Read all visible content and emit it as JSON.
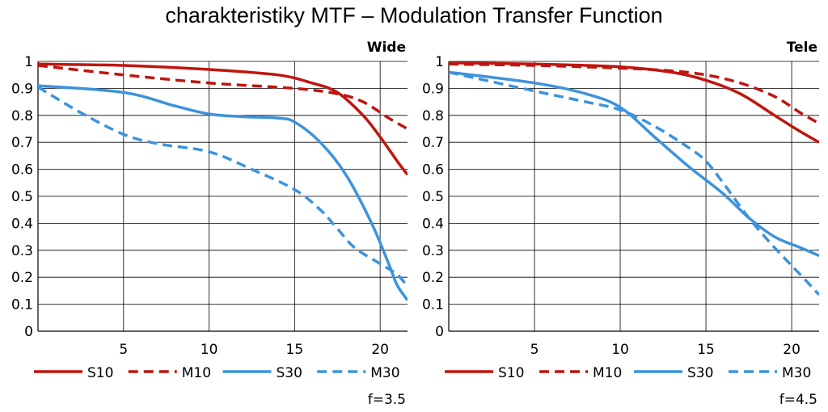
{
  "title": "charakteristiky MTF – Modulation Transfer Function",
  "colors": {
    "red": "#c0150f",
    "blue": "#3d93dc",
    "grid": "#000000"
  },
  "chart_data": [
    {
      "type": "line",
      "panel_label": "Wide",
      "footnote": "f=3.5",
      "xlim": [
        0,
        21.6
      ],
      "ylim": [
        0,
        1
      ],
      "x_ticks": [
        5,
        10,
        15,
        20
      ],
      "y_ticks": [
        0,
        0.1,
        0.2,
        0.3,
        0.4,
        0.5,
        0.6,
        0.7,
        0.8,
        0.9,
        1
      ],
      "y_tick_labels": [
        "0",
        "0.1",
        "0.2",
        "0.3",
        "0.4",
        "0.5",
        "0.6",
        "0.7",
        "0.8",
        "0.9",
        "1"
      ],
      "grid": true,
      "legend_position": "bottom",
      "series": [
        {
          "name": "S10",
          "color": "red",
          "dashed": false,
          "points": [
            [
              0,
              0.99
            ],
            [
              5,
              0.985
            ],
            [
              10,
              0.97
            ],
            [
              14,
              0.95
            ],
            [
              16,
              0.92
            ],
            [
              17.5,
              0.885
            ],
            [
              19,
              0.8
            ],
            [
              20,
              0.72
            ],
            [
              21,
              0.63
            ],
            [
              21.6,
              0.58
            ]
          ]
        },
        {
          "name": "M10",
          "color": "red",
          "dashed": true,
          "points": [
            [
              0,
              0.985
            ],
            [
              5,
              0.95
            ],
            [
              10,
              0.92
            ],
            [
              15,
              0.9
            ],
            [
              17.5,
              0.88
            ],
            [
              19,
              0.85
            ],
            [
              20.5,
              0.79
            ],
            [
              21.6,
              0.75
            ]
          ]
        },
        {
          "name": "S30",
          "color": "blue",
          "dashed": false,
          "points": [
            [
              0,
              0.91
            ],
            [
              5,
              0.885
            ],
            [
              8,
              0.835
            ],
            [
              10,
              0.805
            ],
            [
              12,
              0.795
            ],
            [
              14,
              0.79
            ],
            [
              15,
              0.775
            ],
            [
              16.5,
              0.7
            ],
            [
              18,
              0.58
            ],
            [
              19.5,
              0.4
            ],
            [
              20.5,
              0.25
            ],
            [
              21,
              0.17
            ],
            [
              21.6,
              0.115
            ]
          ]
        },
        {
          "name": "M30",
          "color": "blue",
          "dashed": true,
          "points": [
            [
              0,
              0.905
            ],
            [
              2.5,
              0.81
            ],
            [
              5,
              0.73
            ],
            [
              7,
              0.695
            ],
            [
              10,
              0.665
            ],
            [
              12.5,
              0.6
            ],
            [
              15,
              0.525
            ],
            [
              16.5,
              0.45
            ],
            [
              17.5,
              0.38
            ],
            [
              18.5,
              0.31
            ],
            [
              20,
              0.25
            ],
            [
              21,
              0.21
            ],
            [
              21.6,
              0.165
            ]
          ]
        }
      ]
    },
    {
      "type": "line",
      "panel_label": "Tele",
      "footnote": "f=4.5",
      "xlim": [
        0,
        21.6
      ],
      "ylim": [
        0,
        1
      ],
      "x_ticks": [
        5,
        10,
        15,
        20
      ],
      "y_ticks": [
        0,
        0.1,
        0.2,
        0.3,
        0.4,
        0.5,
        0.6,
        0.7,
        0.8,
        0.9,
        1
      ],
      "y_tick_labels": [
        "0",
        "0.1",
        "0.2",
        "0.3",
        "0.4",
        "0.5",
        "0.6",
        "0.7",
        "0.8",
        "0.9",
        "1"
      ],
      "grid": true,
      "legend_position": "bottom",
      "series": [
        {
          "name": "S10",
          "color": "red",
          "dashed": false,
          "points": [
            [
              0,
              0.995
            ],
            [
              5,
              0.99
            ],
            [
              10,
              0.98
            ],
            [
              13,
              0.96
            ],
            [
              15,
              0.93
            ],
            [
              17,
              0.88
            ],
            [
              19,
              0.8
            ],
            [
              20.5,
              0.74
            ],
            [
              21.6,
              0.7
            ]
          ]
        },
        {
          "name": "M10",
          "color": "red",
          "dashed": true,
          "points": [
            [
              0,
              0.99
            ],
            [
              5,
              0.985
            ],
            [
              10,
              0.975
            ],
            [
              13,
              0.965
            ],
            [
              15,
              0.95
            ],
            [
              17,
              0.92
            ],
            [
              19,
              0.87
            ],
            [
              20.5,
              0.81
            ],
            [
              21.6,
              0.77
            ]
          ]
        },
        {
          "name": "S30",
          "color": "blue",
          "dashed": false,
          "points": [
            [
              0,
              0.96
            ],
            [
              5,
              0.92
            ],
            [
              8,
              0.88
            ],
            [
              10,
              0.83
            ],
            [
              12,
              0.72
            ],
            [
              14,
              0.61
            ],
            [
              16,
              0.51
            ],
            [
              17.5,
              0.42
            ],
            [
              19,
              0.35
            ],
            [
              20.5,
              0.31
            ],
            [
              21.6,
              0.28
            ]
          ]
        },
        {
          "name": "M30",
          "color": "blue",
          "dashed": true,
          "points": [
            [
              0,
              0.96
            ],
            [
              5,
              0.89
            ],
            [
              8,
              0.85
            ],
            [
              10,
              0.82
            ],
            [
              12,
              0.76
            ],
            [
              14,
              0.68
            ],
            [
              15,
              0.63
            ],
            [
              16,
              0.55
            ],
            [
              17.5,
              0.42
            ],
            [
              19,
              0.31
            ],
            [
              20.5,
              0.21
            ],
            [
              21.6,
              0.135
            ]
          ]
        }
      ]
    }
  ]
}
